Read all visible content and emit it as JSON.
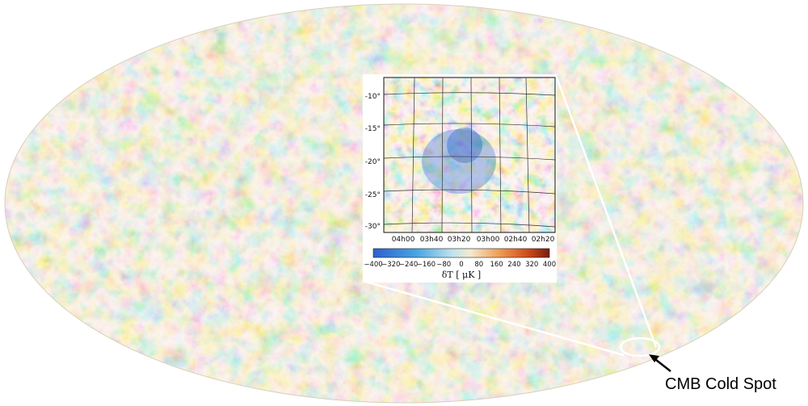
{
  "map": {
    "colors": {
      "cold": "#2f6bd6",
      "mid": "#f3e7bf",
      "hot": "#c8431a",
      "cyan": "#62bfe3",
      "orange": "#e8944e"
    }
  },
  "inset": {
    "y_ticks": [
      "-10°",
      "-15°",
      "-20°",
      "-25°",
      "-30°"
    ],
    "x_ticks": [
      "04h00",
      "03h40",
      "03h20",
      "03h00",
      "02h40",
      "02h20"
    ],
    "colorbar": {
      "ticks": [
        "−400",
        "−320",
        "−240",
        "−160",
        "−80",
        "0",
        "80",
        "160",
        "240",
        "320",
        "400"
      ],
      "label": "δT [ μK ]"
    }
  },
  "callout": {
    "label": "CMB Cold Spot",
    "icon": "arrow-icon"
  }
}
